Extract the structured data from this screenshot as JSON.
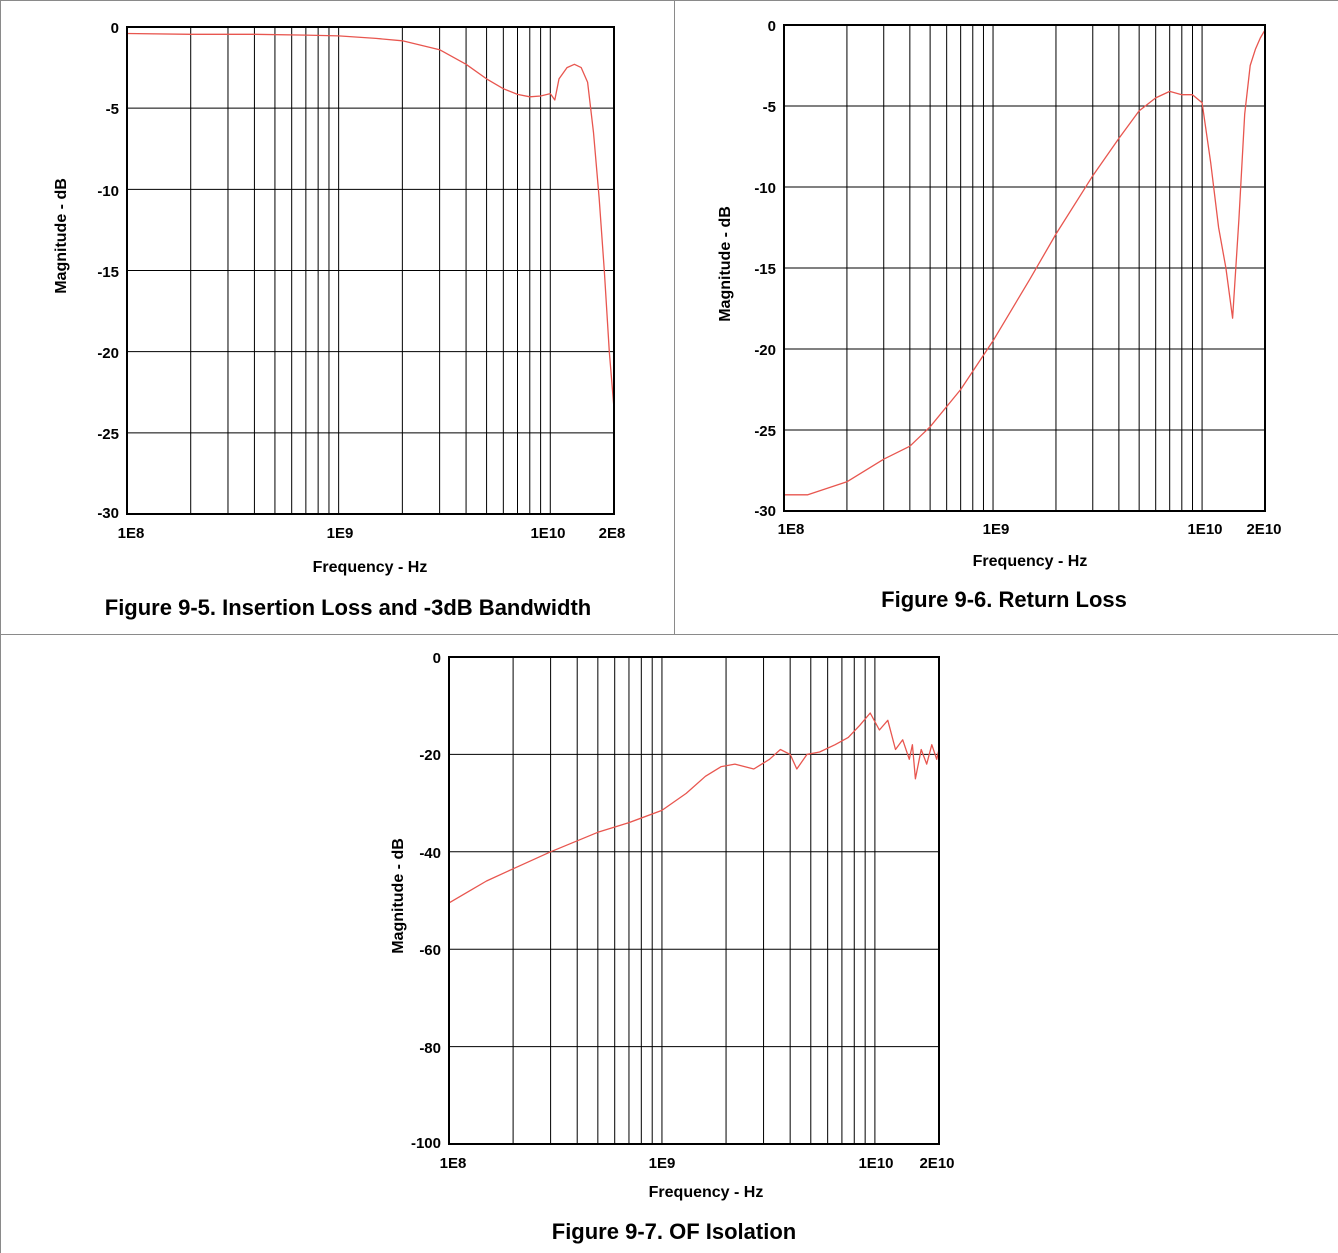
{
  "chart_data": [
    {
      "type": "line",
      "caption": "Figure 9-5. Insertion Loss and -3dB Bandwidth",
      "title": "",
      "xlabel": "Frequency - Hz",
      "ylabel": "Magnitude - dB",
      "x_scale": "log",
      "xlim": [
        100000000,
        20000000000
      ],
      "ylim": [
        -30,
        0
      ],
      "yticks": [
        "0",
        "-5",
        "-10",
        "-15",
        "-20",
        "-25",
        "-30"
      ],
      "xtick_labels": [
        "1E8",
        "1E9",
        "1E10",
        "2E8"
      ],
      "grid": true,
      "series": [
        {
          "color": "#e8564f",
          "x": [
            100000000,
            200000000,
            400000000,
            700000000,
            1000000000,
            1500000000,
            2000000000,
            3000000000,
            4000000000,
            5000000000,
            6000000000,
            7000000000,
            8000000000,
            9000000000,
            10000000000,
            10500000000,
            11000000000,
            12000000000,
            13000000000,
            14000000000,
            15000000000,
            16000000000,
            17000000000,
            18000000000,
            19000000000,
            20000000000
          ],
          "y": [
            -0.4,
            -0.45,
            -0.45,
            -0.5,
            -0.55,
            -0.7,
            -0.85,
            -1.4,
            -2.3,
            -3.2,
            -3.8,
            -4.15,
            -4.3,
            -4.25,
            -4.1,
            -4.5,
            -3.2,
            -2.5,
            -2.3,
            -2.5,
            -3.4,
            -6.5,
            -10.5,
            -15,
            -20,
            -23.5
          ]
        }
      ]
    },
    {
      "type": "line",
      "caption": "Figure 9-6. Return Loss",
      "title": "",
      "xlabel": "Frequency - Hz",
      "ylabel": "Magnitude - dB",
      "x_scale": "log",
      "xlim": [
        100000000,
        20000000000
      ],
      "ylim": [
        -30,
        0
      ],
      "yticks": [
        "0",
        "-5",
        "-10",
        "-15",
        "-20",
        "-25",
        "-30"
      ],
      "xtick_labels": [
        "1E8",
        "1E9",
        "1E10",
        "2E10"
      ],
      "grid": true,
      "series": [
        {
          "color": "#e8564f",
          "x": [
            100000000,
            130000000,
            200000000,
            300000000,
            400000000,
            500000000,
            700000000,
            1000000000,
            1500000000,
            2000000000,
            3000000000,
            4000000000,
            5000000000,
            6000000000,
            7000000000,
            8000000000,
            9000000000,
            10000000000,
            11000000000,
            12000000000,
            13000000000,
            14000000000,
            15000000000,
            16000000000,
            17000000000,
            18000000000,
            19000000000,
            20000000000
          ],
          "y": [
            -29,
            -29,
            -28.2,
            -26.8,
            -26,
            -24.8,
            -22.5,
            -19.5,
            -15.7,
            -12.9,
            -9.3,
            -7,
            -5.3,
            -4.5,
            -4.1,
            -4.3,
            -4.3,
            -4.8,
            -8.5,
            -12.5,
            -15,
            -18.1,
            -12,
            -5.5,
            -2.5,
            -1.5,
            -0.8,
            -0.3
          ]
        }
      ]
    },
    {
      "type": "line",
      "caption": "Figure 9-7. OF Isolation",
      "title": "",
      "xlabel": "Frequency - Hz",
      "ylabel": "Magnitude - dB",
      "x_scale": "log",
      "xlim": [
        100000000,
        20000000000
      ],
      "ylim": [
        -100,
        0
      ],
      "yticks": [
        "0",
        "-20",
        "-40",
        "-60",
        "-80",
        "-100"
      ],
      "xtick_labels": [
        "1E8",
        "1E9",
        "1E10",
        "2E10"
      ],
      "grid": true,
      "series": [
        {
          "color": "#e8564f",
          "x": [
            100000000,
            150000000,
            200000000,
            300000000,
            500000000,
            700000000,
            1000000000,
            1300000000,
            1600000000,
            1900000000,
            2200000000,
            2700000000,
            3200000000,
            3600000000,
            4000000000,
            4300000000,
            4800000000,
            5500000000,
            6500000000,
            7500000000,
            8500000000,
            9500000000,
            10500000000,
            11500000000,
            12500000000,
            13500000000,
            14500000000,
            15000000000,
            15500000000,
            16500000000,
            17500000000,
            18500000000,
            19500000000,
            20000000000
          ],
          "y": [
            -50.5,
            -46,
            -43.5,
            -40,
            -36,
            -34,
            -31.5,
            -28,
            -24.5,
            -22.5,
            -22,
            -23,
            -21,
            -19,
            -20,
            -23,
            -20,
            -19.5,
            -18,
            -16.5,
            -14,
            -11.5,
            -15,
            -13,
            -19,
            -17,
            -21,
            -18,
            -25,
            -19,
            -22,
            -18,
            -21,
            -19
          ]
        }
      ]
    }
  ]
}
